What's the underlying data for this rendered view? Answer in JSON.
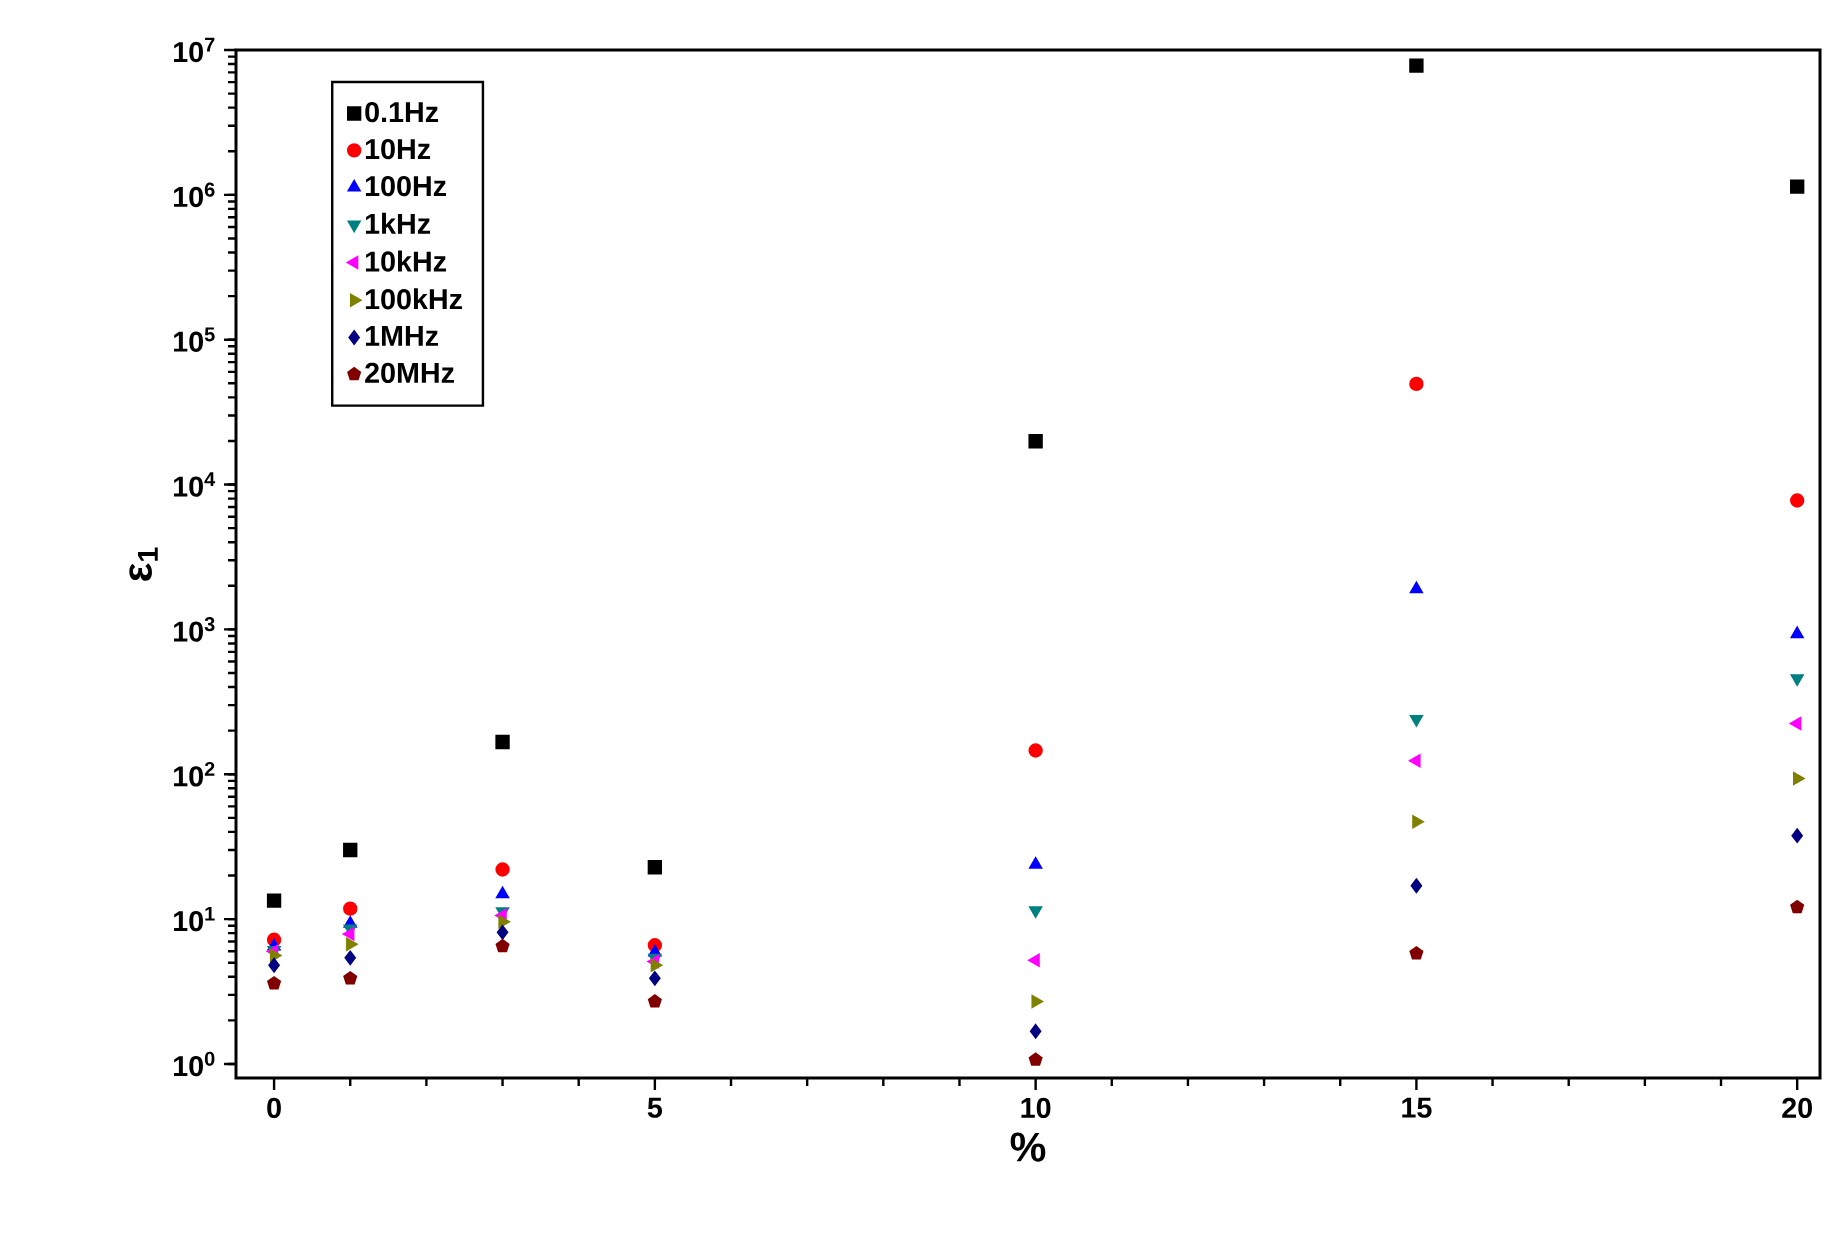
{
  "chart_data": {
    "type": "scatter",
    "xlabel": "%",
    "ylabel": "ε$_{1}$",
    "log": "y",
    "legend": "top left",
    "grid": false,
    "x": [
      0,
      1,
      3,
      5,
      10,
      15,
      20
    ],
    "xlim": [
      -0.5,
      20.3
    ],
    "xticks": [
      0,
      5,
      10,
      15,
      20
    ],
    "ylim": [
      0.8,
      10000000
    ],
    "yticks": [
      {
        "value": 1,
        "label": "10$^{0}$"
      },
      {
        "value": 10,
        "label": "10$^{1}$"
      },
      {
        "value": 100,
        "label": "10$^{2}$"
      },
      {
        "value": 1000,
        "label": "10$^{3}$"
      },
      {
        "value": 10000,
        "label": "10$^{4}$"
      },
      {
        "value": 100000,
        "label": "10$^{5}$"
      },
      {
        "value": 1000000,
        "label": "10$^{6}$"
      },
      {
        "value": 10000000,
        "label": "10$^{7}$"
      }
    ],
    "series": [
      {
        "name": "0.1Hz",
        "color": "#000000",
        "marker": "square",
        "values": [
          13.4,
          30,
          167,
          22.8,
          19900,
          7800000,
          1140000
        ]
      },
      {
        "name": "10Hz",
        "color": "#ff0000",
        "marker": "circle",
        "values": [
          7.2,
          11.8,
          22,
          6.6,
          146,
          49500,
          7760
        ]
      },
      {
        "name": "100Hz",
        "color": "#0000ff",
        "marker": "triangle",
        "values": [
          6.5,
          9.3,
          14.9,
          5.9,
          23.8,
          1900,
          930
        ]
      },
      {
        "name": "1kHz",
        "color": "#008080",
        "marker": "triangle-down",
        "values": [
          6.1,
          8.6,
          11.3,
          5.4,
          11.5,
          240,
          459
        ]
      },
      {
        "name": "10kHz",
        "color": "#ff00ff",
        "marker": "triangle-left",
        "values": [
          6.0,
          7.9,
          10.6,
          5.1,
          5.2,
          124,
          224
        ]
      },
      {
        "name": "100kHz",
        "color": "#808000",
        "marker": "triangle-right",
        "values": [
          5.6,
          6.7,
          9.6,
          4.8,
          2.7,
          47,
          93.5
        ]
      },
      {
        "name": "1MHz",
        "color": "#000080",
        "marker": "diamond",
        "values": [
          4.8,
          5.4,
          8.1,
          3.9,
          1.68,
          17,
          37.7
        ]
      },
      {
        "name": "20MHz",
        "color": "#800000",
        "values": [
          3.6,
          3.9,
          6.5,
          2.7,
          1.07,
          5.8,
          12.1
        ]
      }
    ]
  }
}
